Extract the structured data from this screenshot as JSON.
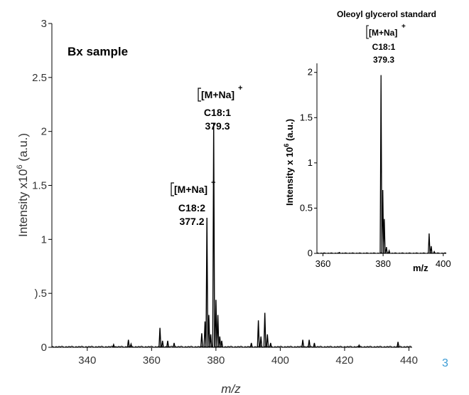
{
  "chart_data": [
    {
      "type": "line",
      "title": "",
      "panel_label": "Bx sample",
      "xlabel": "m/z",
      "ylabel": "Intensity x10",
      "ylabel_exponent": "6",
      "ylabel_unit": " (a.u.)",
      "xlim": [
        329,
        441
      ],
      "ylim": [
        0,
        3
      ],
      "x_ticks": [
        340,
        360,
        380,
        400,
        420,
        440
      ],
      "y_ticks": [
        0,
        0.5,
        1,
        1.5,
        2,
        2.5,
        3
      ],
      "y_tick_labels": [
        "0",
        ").5",
        "1",
        "1.5",
        "2",
        "2.5",
        "3"
      ],
      "grid": false,
      "series": [
        {
          "peaks": [
            {
              "x": 348.2,
              "y": 0.025
            },
            {
              "x": 352.8,
              "y": 0.07
            },
            {
              "x": 353.6,
              "y": 0.03
            },
            {
              "x": 362.6,
              "y": 0.18
            },
            {
              "x": 363.4,
              "y": 0.06
            },
            {
              "x": 365.0,
              "y": 0.06
            },
            {
              "x": 367.0,
              "y": 0.04
            },
            {
              "x": 375.6,
              "y": 0.13
            },
            {
              "x": 376.6,
              "y": 0.24
            },
            {
              "x": 377.2,
              "y": 1.2
            },
            {
              "x": 377.8,
              "y": 0.3
            },
            {
              "x": 378.4,
              "y": 0.12
            },
            {
              "x": 379.3,
              "y": 2.08
            },
            {
              "x": 380.0,
              "y": 0.44
            },
            {
              "x": 380.6,
              "y": 0.3
            },
            {
              "x": 381.2,
              "y": 0.1
            },
            {
              "x": 381.8,
              "y": 0.06
            },
            {
              "x": 391.0,
              "y": 0.04
            },
            {
              "x": 393.2,
              "y": 0.25
            },
            {
              "x": 394.0,
              "y": 0.1
            },
            {
              "x": 395.2,
              "y": 0.32
            },
            {
              "x": 396.0,
              "y": 0.12
            },
            {
              "x": 397.0,
              "y": 0.04
            },
            {
              "x": 407.0,
              "y": 0.07
            },
            {
              "x": 409.0,
              "y": 0.07
            },
            {
              "x": 410.6,
              "y": 0.04
            },
            {
              "x": 424.5,
              "y": 0.02
            },
            {
              "x": 436.6,
              "y": 0.05
            }
          ]
        }
      ],
      "annotations": [
        {
          "lines": [
            "[M+Na]",
            "C18:1",
            "379.3"
          ],
          "superscript": "+",
          "x": 379.3
        },
        {
          "lines": [
            "[M+Na]",
            "C18:2",
            "377.2"
          ],
          "superscript": "+",
          "x": 377.2
        }
      ],
      "edge_label": "3"
    },
    {
      "type": "line",
      "title": "Oleoyl glycerol standard",
      "xlabel": "m/z",
      "ylabel": "Intensity x 10",
      "ylabel_exponent": "6",
      "ylabel_unit": " (a.u.)",
      "xlim": [
        358,
        401
      ],
      "ylim": [
        0,
        2.1
      ],
      "x_ticks": [
        360,
        380,
        400
      ],
      "y_ticks": [
        0,
        0.5,
        1,
        1.5,
        2
      ],
      "y_tick_labels": [
        "0",
        "0.5",
        "1",
        "1.5",
        "2"
      ],
      "grid": false,
      "series": [
        {
          "peaks": [
            {
              "x": 365.5,
              "y": 0.01
            },
            {
              "x": 379.3,
              "y": 1.97
            },
            {
              "x": 379.9,
              "y": 0.7
            },
            {
              "x": 380.4,
              "y": 0.38
            },
            {
              "x": 381.1,
              "y": 0.07
            },
            {
              "x": 382.0,
              "y": 0.03
            },
            {
              "x": 395.3,
              "y": 0.22
            },
            {
              "x": 396.0,
              "y": 0.08
            },
            {
              "x": 397.0,
              "y": 0.02
            }
          ]
        }
      ],
      "annotations": [
        {
          "lines": [
            "[M+Na]",
            "C18:1",
            "379.3"
          ],
          "superscript": "+",
          "x": 379.3
        }
      ]
    }
  ]
}
